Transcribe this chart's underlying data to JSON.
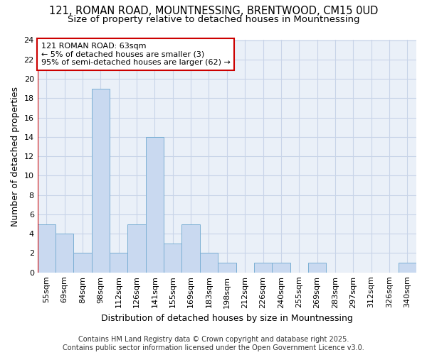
{
  "title_line1": "121, ROMAN ROAD, MOUNTNESSING, BRENTWOOD, CM15 0UD",
  "title_line2": "Size of property relative to detached houses in Mountnessing",
  "xlabel": "Distribution of detached houses by size in Mountnessing",
  "ylabel": "Number of detached properties",
  "categories": [
    "55sqm",
    "69sqm",
    "84sqm",
    "98sqm",
    "112sqm",
    "126sqm",
    "141sqm",
    "155sqm",
    "169sqm",
    "183sqm",
    "198sqm",
    "212sqm",
    "226sqm",
    "240sqm",
    "255sqm",
    "269sqm",
    "283sqm",
    "297sqm",
    "312sqm",
    "326sqm",
    "340sqm"
  ],
  "values": [
    5,
    4,
    2,
    19,
    2,
    5,
    14,
    3,
    5,
    2,
    1,
    0,
    1,
    1,
    0,
    1,
    0,
    0,
    0,
    0,
    1
  ],
  "bar_color": "#c9d9f0",
  "bar_edge_color": "#7bafd4",
  "annotation_text": "121 ROMAN ROAD: 63sqm\n← 5% of detached houses are smaller (3)\n95% of semi-detached houses are larger (62) →",
  "annotation_box_color": "#ffffff",
  "annotation_box_edge": "#cc0000",
  "subject_line_color": "#cc0000",
  "ylim": [
    0,
    24
  ],
  "yticks": [
    0,
    2,
    4,
    6,
    8,
    10,
    12,
    14,
    16,
    18,
    20,
    22,
    24
  ],
  "grid_color": "#c8d4e8",
  "background_color": "#eaf0f8",
  "footer_line1": "Contains HM Land Registry data © Crown copyright and database right 2025.",
  "footer_line2": "Contains public sector information licensed under the Open Government Licence v3.0.",
  "title_fontsize": 10.5,
  "subtitle_fontsize": 9.5,
  "axis_label_fontsize": 9,
  "tick_fontsize": 8,
  "annotation_fontsize": 8,
  "footer_fontsize": 7
}
